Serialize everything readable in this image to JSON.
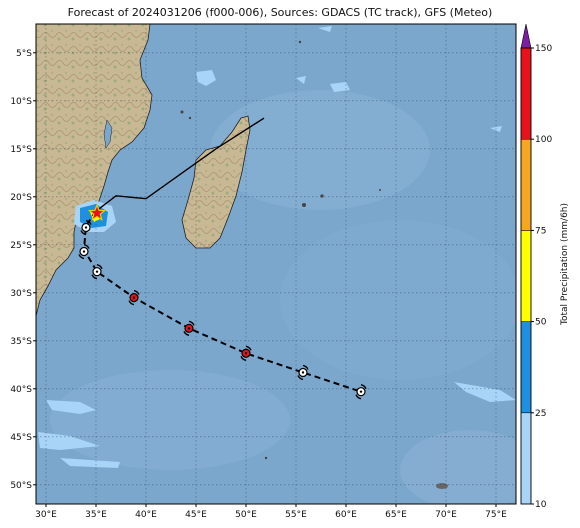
{
  "title": "Forecast of 2024031206 (f000-006), Sources: GDACS (TC track), GFS (Meteo)",
  "map": {
    "lon_range": [
      29,
      77
    ],
    "lat_range": [
      -52,
      -2
    ],
    "lon_ticks": [
      "30°E",
      "35°E",
      "40°E",
      "45°E",
      "50°E",
      "55°E",
      "60°E",
      "65°E",
      "70°E",
      "75°E"
    ],
    "lat_ticks": [
      "5°S",
      "10°S",
      "15°S",
      "20°S",
      "25°S",
      "30°S",
      "35°S",
      "40°S",
      "45°S",
      "50°S"
    ],
    "ocean_color": "#7aa6cc",
    "land_color": "#c8b898"
  },
  "track": {
    "past_track": [
      [
        51.8,
        -11.8
      ],
      [
        47,
        -15
      ],
      [
        40,
        -20.2
      ],
      [
        37,
        -19.9
      ],
      [
        35,
        -21.5
      ]
    ],
    "forecast_track": [
      [
        35,
        -21.5
      ],
      [
        34,
        -23
      ],
      [
        33.8,
        -25.5
      ],
      [
        35.1,
        -27.8
      ],
      [
        38.8,
        -30.5
      ],
      [
        44.3,
        -33.7
      ],
      [
        50,
        -36.3
      ],
      [
        55.7,
        -38.3
      ],
      [
        61.5,
        -40.3
      ]
    ],
    "current_position": [
      35.1,
      -21.7
    ],
    "symbols": [
      {
        "lon": 34.0,
        "lat": -23.2,
        "color": "white"
      },
      {
        "lon": 33.8,
        "lat": -25.7,
        "color": "white"
      },
      {
        "lon": 35.1,
        "lat": -27.8,
        "color": "white"
      },
      {
        "lon": 38.8,
        "lat": -30.5,
        "color": "red"
      },
      {
        "lon": 44.3,
        "lat": -33.7,
        "color": "red"
      },
      {
        "lon": 50.0,
        "lat": -36.3,
        "color": "red"
      },
      {
        "lon": 55.7,
        "lat": -38.3,
        "color": "white"
      },
      {
        "lon": 61.5,
        "lat": -40.3,
        "color": "white"
      }
    ]
  },
  "colorbar": {
    "label": "Total Precipitation (mm/6h)",
    "ticks": [
      "10",
      "25",
      "50",
      "75",
      "100",
      "150"
    ],
    "colors": [
      "#a8d4f8",
      "#1e90e0",
      "#ffff00",
      "#f5a623",
      "#e8121c"
    ],
    "extend_color": "#7b1fa2"
  }
}
